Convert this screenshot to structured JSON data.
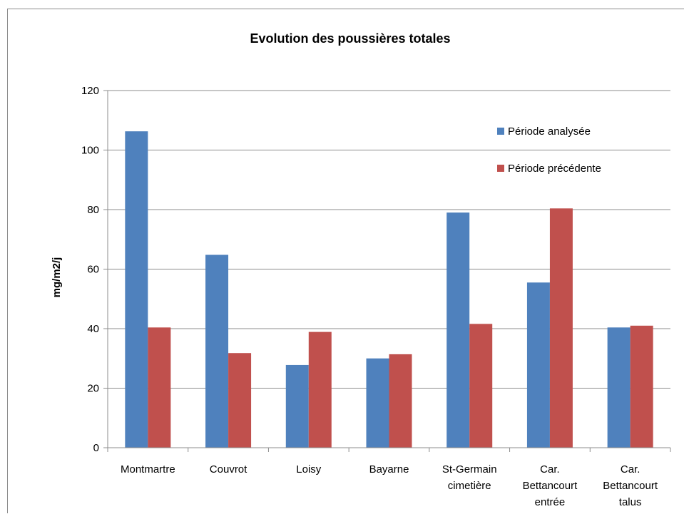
{
  "chart_data": {
    "type": "bar",
    "title": "Evolution des poussières totales",
    "ylabel": "mg/m2/j",
    "xlabel": "",
    "ylim": [
      0,
      120
    ],
    "yticks": [
      0,
      20,
      40,
      60,
      80,
      100,
      120
    ],
    "grid": true,
    "legend_position": "top-right",
    "categories": [
      [
        "Montmartre"
      ],
      [
        "Couvrot"
      ],
      [
        "Loisy"
      ],
      [
        "Bayarne"
      ],
      [
        "St-Germain",
        "cimetière"
      ],
      [
        "Car.",
        "Bettancourt",
        "entrée"
      ],
      [
        "Car.",
        "Bettancourt",
        "talus"
      ]
    ],
    "series": [
      {
        "name": "Période analysée",
        "color": "#4f81bd",
        "values": [
          106.3,
          64.8,
          27.8,
          30.0,
          79.0,
          55.5,
          40.4
        ]
      },
      {
        "name": "Période précédente",
        "color": "#c0504d",
        "values": [
          40.4,
          31.8,
          38.9,
          31.4,
          41.6,
          80.4,
          41.0
        ]
      }
    ]
  }
}
